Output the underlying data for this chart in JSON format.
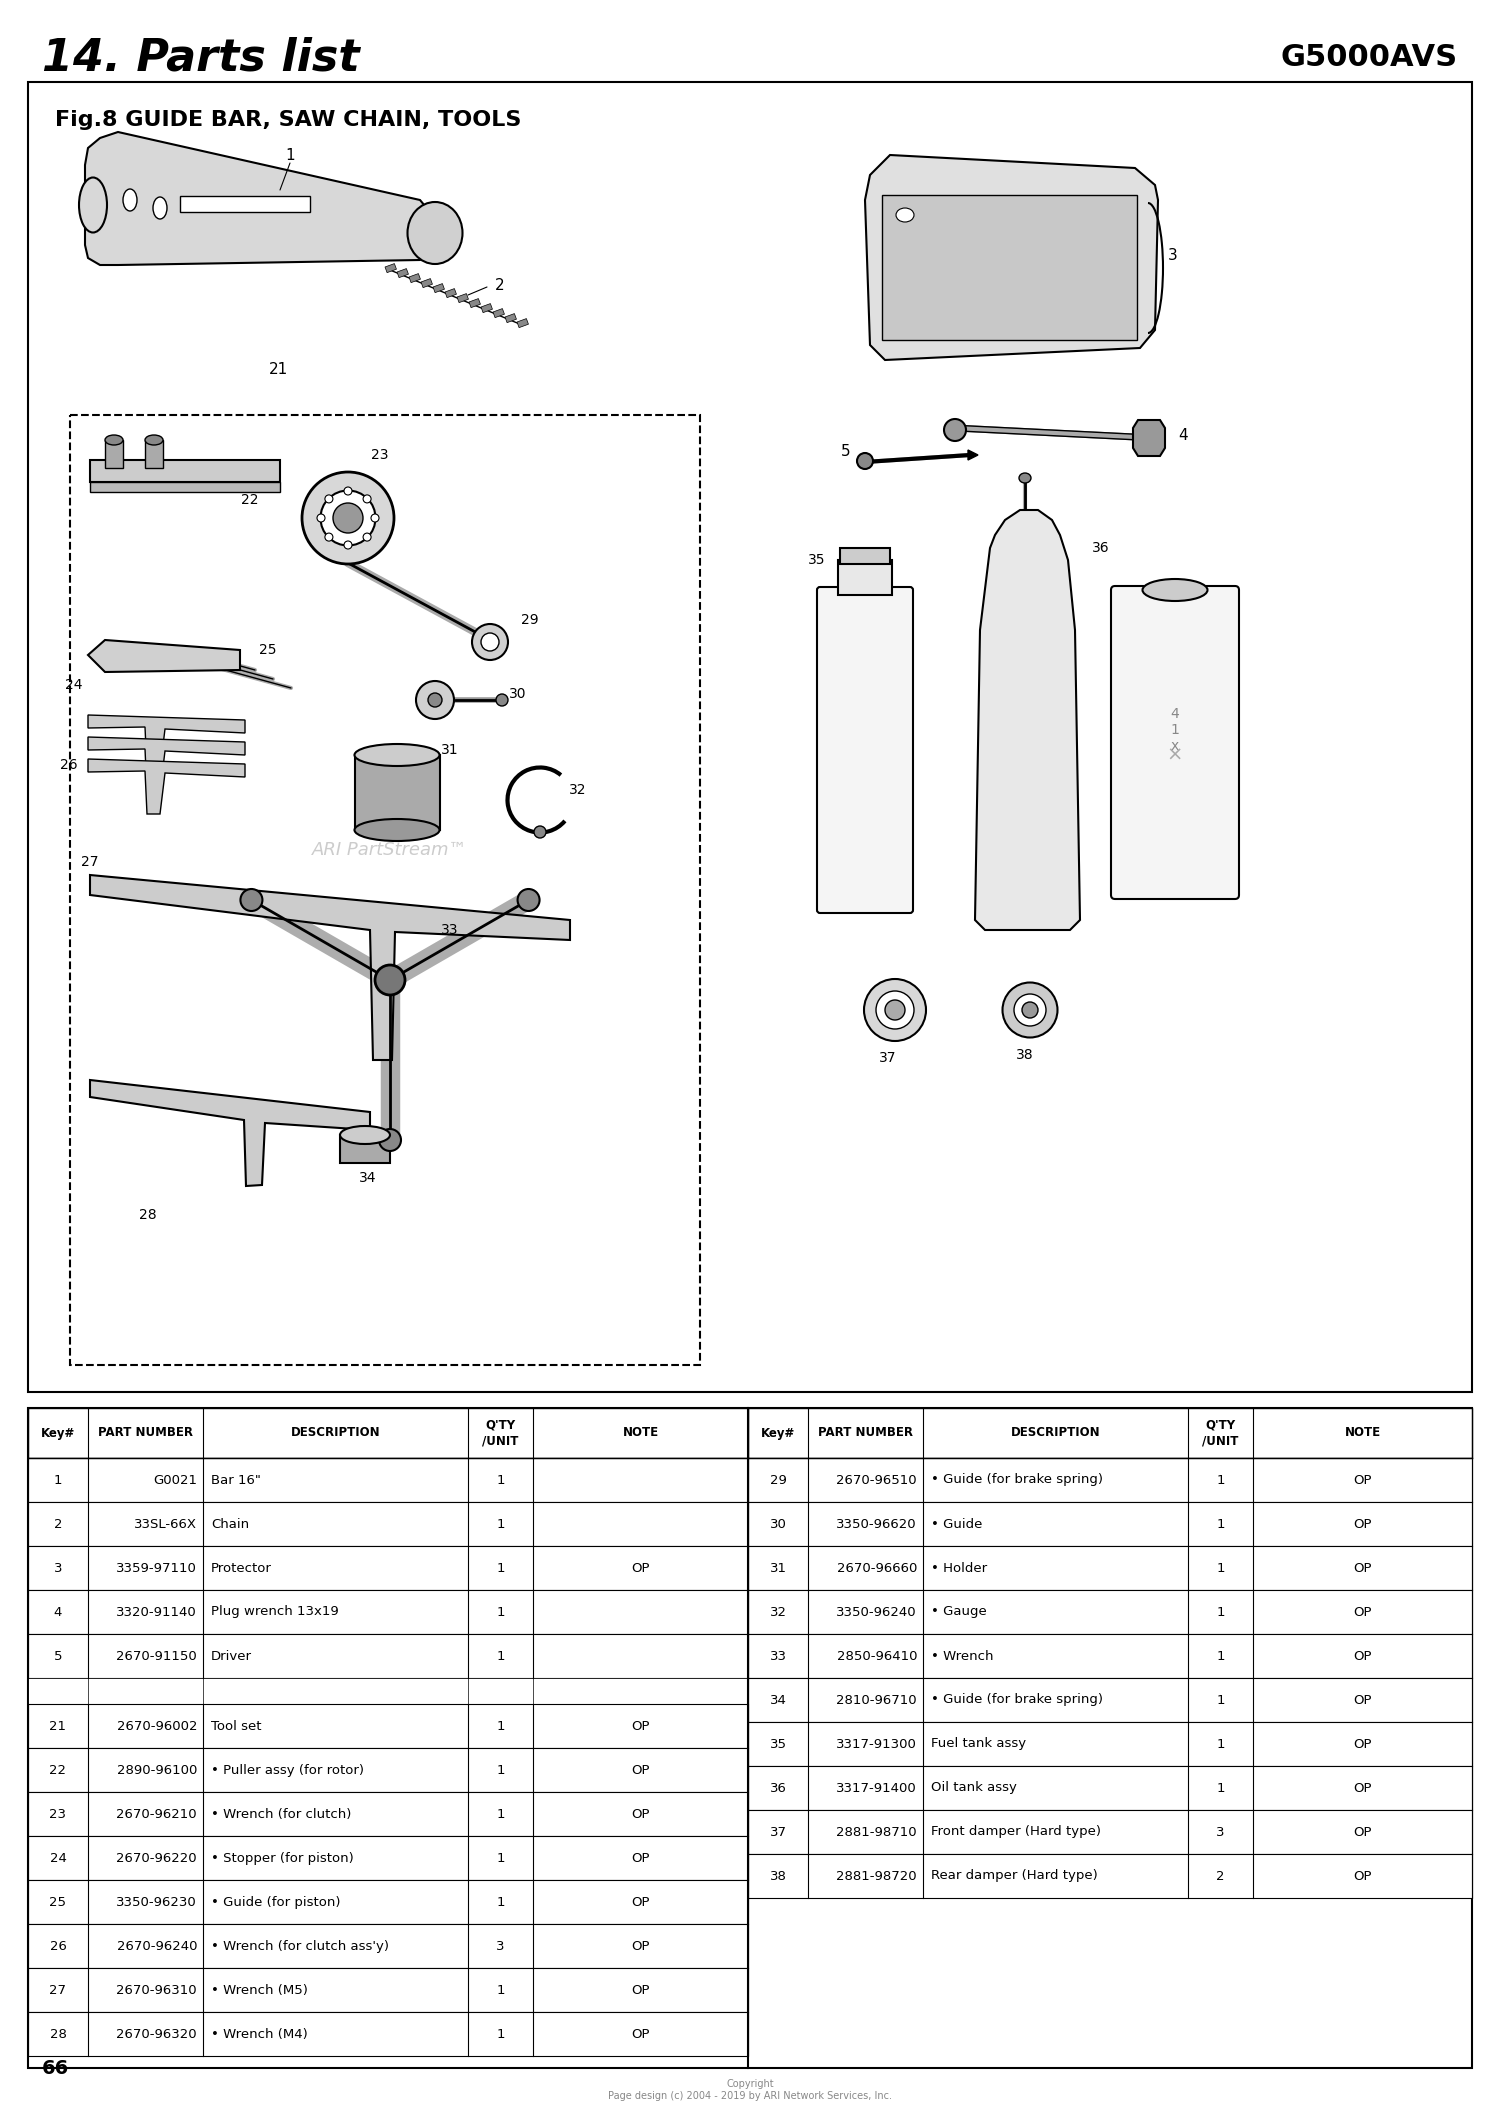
{
  "title": "14. Parts list",
  "model": "G5000AVS",
  "fig_title": "Fig.8 GUIDE BAR, SAW CHAIN, TOOLS",
  "page_number": "66",
  "watermark": "ARI PartStream™",
  "copyright": "Copyright\nPage design (c) 2004 - 2019 by ARI Network Services, Inc.",
  "bg_color": "#ffffff",
  "left_parts": [
    {
      "key": "1",
      "part": "G0021",
      "desc": "Bar 16\"",
      "qty": "1",
      "note": ""
    },
    {
      "key": "2",
      "part": "33SL-66X",
      "desc": "Chain",
      "qty": "1",
      "note": ""
    },
    {
      "key": "3",
      "part": "3359-97110",
      "desc": "Protector",
      "qty": "1",
      "note": "OP"
    },
    {
      "key": "4",
      "part": "3320-91140",
      "desc": "Plug wrench 13x19",
      "qty": "1",
      "note": ""
    },
    {
      "key": "5",
      "part": "2670-91150",
      "desc": "Driver",
      "qty": "1",
      "note": ""
    },
    {
      "key": "21",
      "part": "2670-96002",
      "desc": "Tool set",
      "qty": "1",
      "note": "OP"
    },
    {
      "key": "22",
      "part": "2890-96100",
      "desc": "• Puller assy (for rotor)",
      "qty": "1",
      "note": "OP"
    },
    {
      "key": "23",
      "part": "2670-96210",
      "desc": "• Wrench (for clutch)",
      "qty": "1",
      "note": "OP"
    },
    {
      "key": "24",
      "part": "2670-96220",
      "desc": "• Stopper (for piston)",
      "qty": "1",
      "note": "OP"
    },
    {
      "key": "25",
      "part": "3350-96230",
      "desc": "• Guide (for piston)",
      "qty": "1",
      "note": "OP"
    },
    {
      "key": "26",
      "part": "2670-96240",
      "desc": "• Wrench (for clutch ass'y)",
      "qty": "3",
      "note": "OP"
    },
    {
      "key": "27",
      "part": "2670-96310",
      "desc": "• Wrench (M5)",
      "qty": "1",
      "note": "OP"
    },
    {
      "key": "28",
      "part": "2670-96320",
      "desc": "• Wrench (M4)",
      "qty": "1",
      "note": "OP"
    }
  ],
  "right_parts": [
    {
      "key": "29",
      "part": "2670-96510",
      "desc": "• Guide (for brake spring)",
      "qty": "1",
      "note": "OP"
    },
    {
      "key": "30",
      "part": "3350-96620",
      "desc": "• Guide",
      "qty": "1",
      "note": "OP"
    },
    {
      "key": "31",
      "part": "2670-96660",
      "desc": "• Holder",
      "qty": "1",
      "note": "OP"
    },
    {
      "key": "32",
      "part": "3350-96240",
      "desc": "• Gauge",
      "qty": "1",
      "note": "OP"
    },
    {
      "key": "33",
      "part": "2850-96410",
      "desc": "• Wrench",
      "qty": "1",
      "note": "OP"
    },
    {
      "key": "34",
      "part": "2810-96710",
      "desc": "• Guide (for brake spring)",
      "qty": "1",
      "note": "OP"
    },
    {
      "key": "35",
      "part": "3317-91300",
      "desc": "Fuel tank assy",
      "qty": "1",
      "note": "OP"
    },
    {
      "key": "36",
      "part": "3317-91400",
      "desc": "Oil tank assy",
      "qty": "1",
      "note": "OP"
    },
    {
      "key": "37",
      "part": "2881-98710",
      "desc": "Front damper (Hard type)",
      "qty": "3",
      "note": "OP"
    },
    {
      "key": "38",
      "part": "2881-98720",
      "desc": "Rear damper (Hard type)",
      "qty": "2",
      "note": "OP"
    }
  ]
}
